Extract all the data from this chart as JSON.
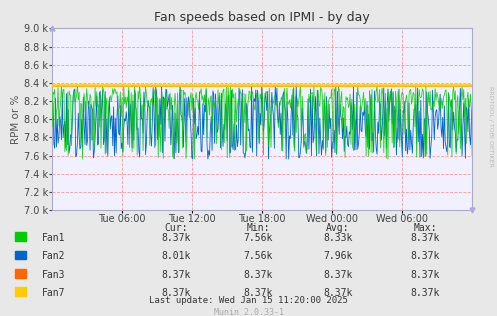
{
  "title": "Fan speeds based on IPMI - by day",
  "ylabel": "RPM or %",
  "ylim": [
    7000,
    9000
  ],
  "yticks": [
    7000,
    7200,
    7400,
    7600,
    7800,
    8000,
    8200,
    8400,
    8600,
    8800,
    9000
  ],
  "fig_bg_color": "#e8e8e8",
  "plot_bg_color": "#f0f0ff",
  "grid_color": "#ff9999",
  "fan3_const": 8370,
  "fan7_const": 8370,
  "fan1_color": "#00cc00",
  "fan2_color": "#0066cc",
  "fan3_color": "#ff6600",
  "fan7_color": "#ffcc00",
  "legend_labels": [
    "Fan1",
    "Fan2",
    "Fan3",
    "Fan7"
  ],
  "legend_cur": [
    "8.37k",
    "8.01k",
    "8.37k",
    "8.37k"
  ],
  "legend_min": [
    "7.56k",
    "7.56k",
    "8.37k",
    "8.37k"
  ],
  "legend_avg": [
    "8.33k",
    "7.96k",
    "8.37k",
    "8.37k"
  ],
  "legend_max": [
    "8.37k",
    "8.37k",
    "8.37k",
    "8.37k"
  ],
  "watermark": "RRDTOOL / TOBI OETIKER",
  "footer_update": "Last update: Wed Jan 15 11:20:00 2025",
  "footer_munin": "Munin 2.0.33-1",
  "xticklabels": [
    "Tue 06:00",
    "Tue 12:00",
    "Tue 18:00",
    "Wed 00:00",
    "Wed 06:00"
  ],
  "num_points": 500,
  "spine_color": "#aaaacc"
}
